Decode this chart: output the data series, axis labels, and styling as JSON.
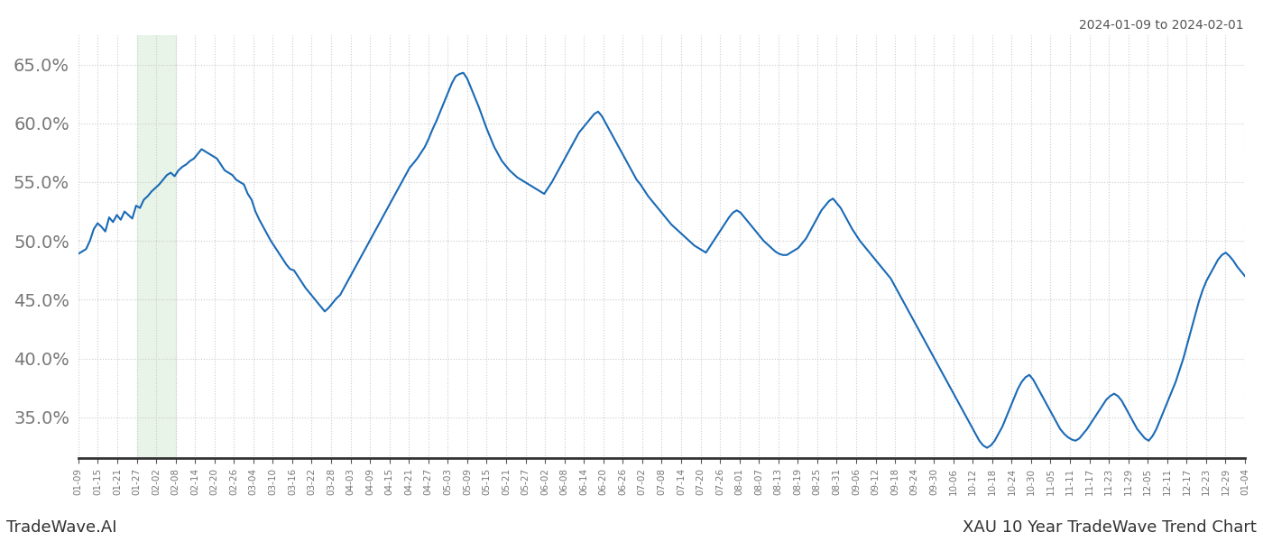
{
  "title_topright": "2024-01-09 to 2024-02-01",
  "title_bottom_left": "TradeWave.AI",
  "title_bottom_right": "XAU 10 Year TradeWave Trend Chart",
  "line_color": "#1a6ab5",
  "line_width": 1.5,
  "background_color": "#ffffff",
  "grid_color": "#cccccc",
  "shade_color": "#daeeda",
  "shade_alpha": 0.6,
  "ylim": [
    0.315,
    0.675
  ],
  "yticks": [
    0.35,
    0.4,
    0.45,
    0.5,
    0.55,
    0.6,
    0.65
  ],
  "shade_xstart": 3,
  "shade_xend": 5,
  "xtick_labels": [
    "01-09",
    "01-15",
    "01-21",
    "01-27",
    "02-02",
    "02-08",
    "02-14",
    "02-20",
    "02-26",
    "03-04",
    "03-10",
    "03-16",
    "03-22",
    "03-28",
    "04-03",
    "04-09",
    "04-15",
    "04-21",
    "04-27",
    "05-03",
    "05-09",
    "05-15",
    "05-21",
    "05-27",
    "06-02",
    "06-08",
    "06-14",
    "06-20",
    "06-26",
    "07-02",
    "07-08",
    "07-14",
    "07-20",
    "07-26",
    "08-01",
    "08-07",
    "08-13",
    "08-19",
    "08-25",
    "08-31",
    "09-06",
    "09-12",
    "09-18",
    "09-24",
    "09-30",
    "10-06",
    "10-12",
    "10-18",
    "10-24",
    "10-30",
    "11-05",
    "11-11",
    "11-17",
    "11-23",
    "11-29",
    "12-05",
    "12-11",
    "12-17",
    "12-23",
    "12-29",
    "01-04"
  ],
  "y_values": [
    0.489,
    0.491,
    0.493,
    0.5,
    0.51,
    0.515,
    0.512,
    0.508,
    0.52,
    0.516,
    0.522,
    0.518,
    0.525,
    0.522,
    0.519,
    0.53,
    0.528,
    0.535,
    0.538,
    0.542,
    0.545,
    0.548,
    0.552,
    0.556,
    0.558,
    0.555,
    0.56,
    0.563,
    0.565,
    0.568,
    0.57,
    0.574,
    0.578,
    0.576,
    0.574,
    0.572,
    0.57,
    0.565,
    0.56,
    0.558,
    0.556,
    0.552,
    0.55,
    0.548,
    0.54,
    0.535,
    0.525,
    0.518,
    0.512,
    0.506,
    0.5,
    0.495,
    0.49,
    0.485,
    0.48,
    0.476,
    0.475,
    0.47,
    0.465,
    0.46,
    0.456,
    0.452,
    0.448,
    0.444,
    0.44,
    0.443,
    0.447,
    0.451,
    0.454,
    0.46,
    0.466,
    0.472,
    0.478,
    0.484,
    0.49,
    0.496,
    0.502,
    0.508,
    0.514,
    0.52,
    0.526,
    0.532,
    0.538,
    0.544,
    0.55,
    0.556,
    0.562,
    0.566,
    0.57,
    0.575,
    0.58,
    0.587,
    0.595,
    0.602,
    0.61,
    0.618,
    0.626,
    0.634,
    0.64,
    0.642,
    0.643,
    0.638,
    0.63,
    0.622,
    0.614,
    0.605,
    0.596,
    0.588,
    0.58,
    0.574,
    0.568,
    0.564,
    0.56,
    0.557,
    0.554,
    0.552,
    0.55,
    0.548,
    0.546,
    0.544,
    0.542,
    0.54,
    0.545,
    0.55,
    0.556,
    0.562,
    0.568,
    0.574,
    0.58,
    0.586,
    0.592,
    0.596,
    0.6,
    0.604,
    0.608,
    0.61,
    0.606,
    0.6,
    0.594,
    0.588,
    0.582,
    0.576,
    0.57,
    0.564,
    0.558,
    0.552,
    0.548,
    0.543,
    0.538,
    0.534,
    0.53,
    0.526,
    0.522,
    0.518,
    0.514,
    0.511,
    0.508,
    0.505,
    0.502,
    0.499,
    0.496,
    0.494,
    0.492,
    0.49,
    0.495,
    0.5,
    0.505,
    0.51,
    0.515,
    0.52,
    0.524,
    0.526,
    0.524,
    0.52,
    0.516,
    0.512,
    0.508,
    0.504,
    0.5,
    0.497,
    0.494,
    0.491,
    0.489,
    0.488,
    0.488,
    0.49,
    0.492,
    0.494,
    0.498,
    0.502,
    0.508,
    0.514,
    0.52,
    0.526,
    0.53,
    0.534,
    0.536,
    0.532,
    0.528,
    0.522,
    0.516,
    0.51,
    0.505,
    0.5,
    0.496,
    0.492,
    0.488,
    0.484,
    0.48,
    0.476,
    0.472,
    0.468,
    0.462,
    0.456,
    0.45,
    0.444,
    0.438,
    0.432,
    0.426,
    0.42,
    0.414,
    0.408,
    0.402,
    0.396,
    0.39,
    0.384,
    0.378,
    0.372,
    0.366,
    0.36,
    0.354,
    0.348,
    0.342,
    0.336,
    0.33,
    0.326,
    0.324,
    0.326,
    0.33,
    0.336,
    0.342,
    0.35,
    0.358,
    0.366,
    0.374,
    0.38,
    0.384,
    0.386,
    0.382,
    0.376,
    0.37,
    0.364,
    0.358,
    0.352,
    0.346,
    0.34,
    0.336,
    0.333,
    0.331,
    0.33,
    0.332,
    0.336,
    0.34,
    0.345,
    0.35,
    0.355,
    0.36,
    0.365,
    0.368,
    0.37,
    0.368,
    0.364,
    0.358,
    0.352,
    0.346,
    0.34,
    0.336,
    0.332,
    0.33,
    0.334,
    0.34,
    0.348,
    0.356,
    0.364,
    0.372,
    0.38,
    0.39,
    0.4,
    0.412,
    0.424,
    0.436,
    0.448,
    0.458,
    0.466,
    0.472,
    0.478,
    0.484,
    0.488,
    0.49,
    0.487,
    0.483,
    0.478,
    0.474,
    0.47
  ]
}
